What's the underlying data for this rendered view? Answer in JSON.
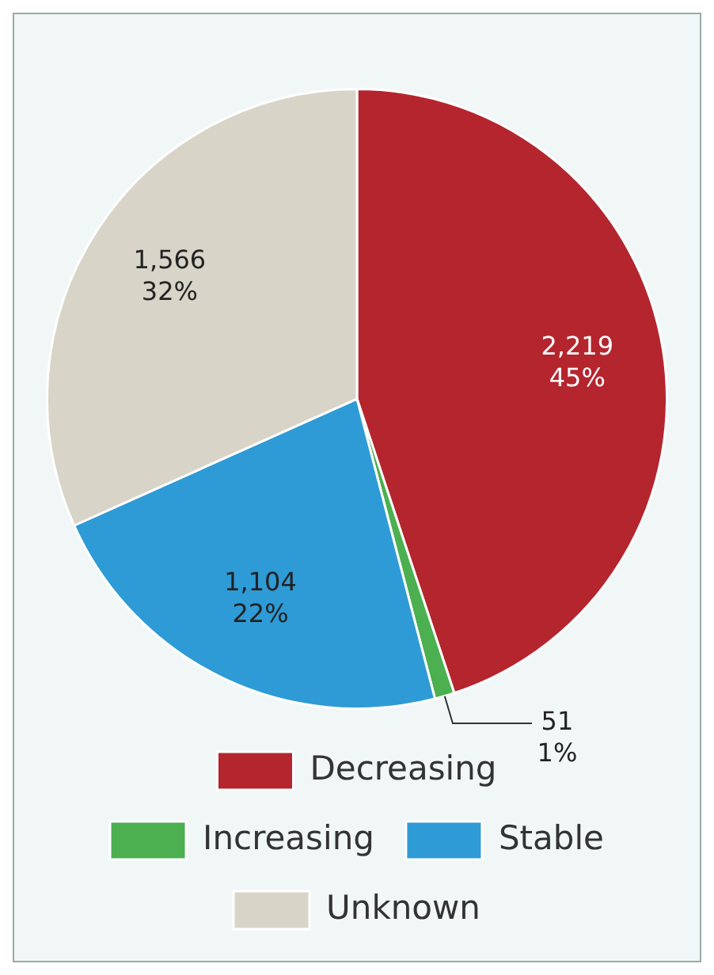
{
  "chart_data": {
    "type": "pie",
    "categories": [
      "Decreasing",
      "Increasing",
      "Stable",
      "Unknown"
    ],
    "values": [
      2219,
      51,
      1104,
      1566
    ],
    "colors": [
      "#b5252e",
      "#4caf50",
      "#2e9bd6",
      "#d9d4c8"
    ],
    "value_labels": [
      "2,219\n45%",
      "51\n1%",
      "1,104\n22%",
      "1,566\n32%"
    ],
    "legend": "bottom"
  }
}
